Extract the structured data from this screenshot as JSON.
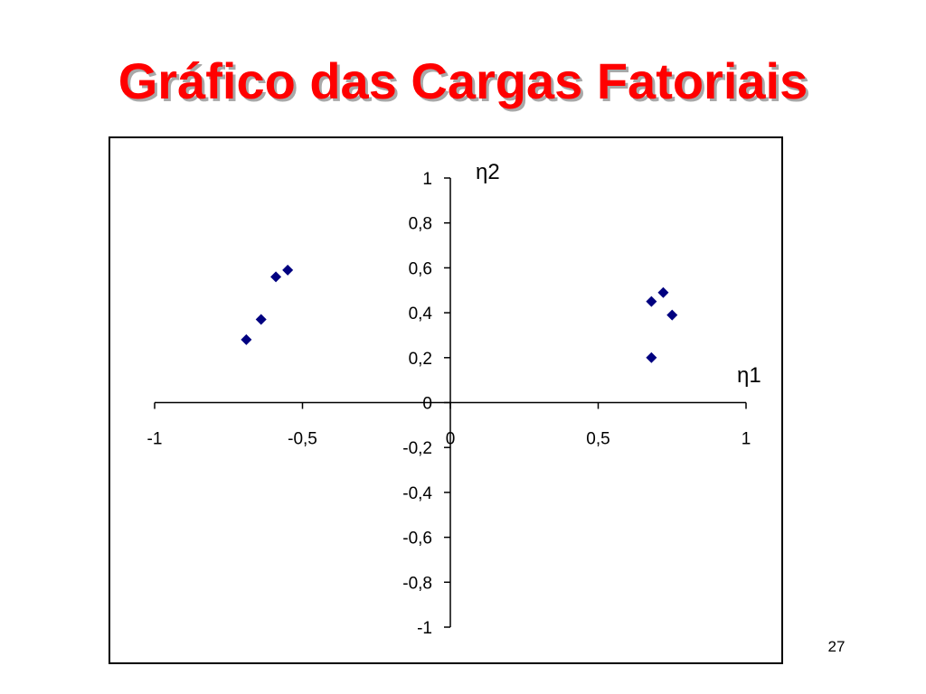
{
  "slide": {
    "title": "Gráfico das Cargas Fatoriais",
    "page_number": "27"
  },
  "chart_data": {
    "type": "scatter",
    "title": "",
    "xlabel": "η1",
    "ylabel": "η2",
    "xlim": [
      -1,
      1
    ],
    "ylim": [
      -1,
      1
    ],
    "xticks": [
      -1,
      -0.5,
      0,
      0.5,
      1
    ],
    "xtick_labels": [
      "-1",
      "-0,5",
      "0",
      "0,5",
      "1"
    ],
    "yticks": [
      1,
      0.8,
      0.6,
      0.4,
      0.2,
      0,
      -0.2,
      -0.4,
      -0.6,
      -0.8,
      -1
    ],
    "ytick_labels": [
      "1",
      "0,8",
      "0,6",
      "0,4",
      "0,2",
      "0",
      "-0,2",
      "-0,4",
      "-0,6",
      "-0,8",
      "-1"
    ],
    "grid": false,
    "marker": "diamond",
    "marker_color": "#000080",
    "points": [
      {
        "x": -0.69,
        "y": 0.28
      },
      {
        "x": -0.64,
        "y": 0.37
      },
      {
        "x": -0.59,
        "y": 0.56
      },
      {
        "x": -0.55,
        "y": 0.59
      },
      {
        "x": 0.68,
        "y": 0.45
      },
      {
        "x": 0.72,
        "y": 0.49
      },
      {
        "x": 0.75,
        "y": 0.39
      },
      {
        "x": 0.68,
        "y": 0.2
      }
    ]
  }
}
